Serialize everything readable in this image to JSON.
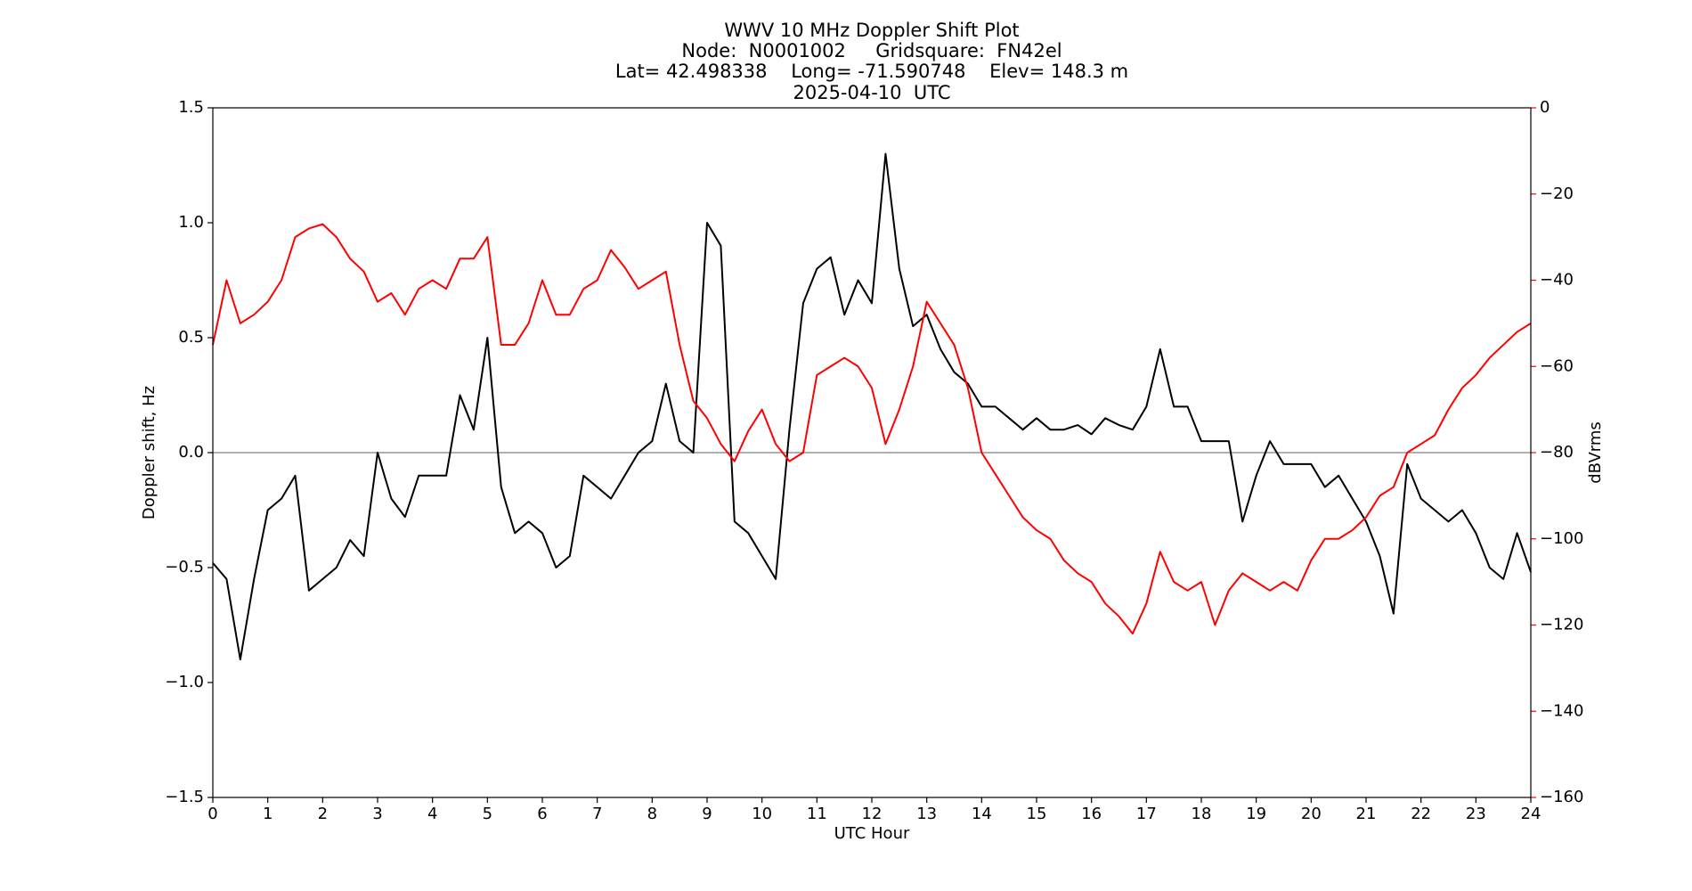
{
  "chart_data": {
    "type": "line",
    "title": "WWV 10 MHz Doppler Shift Plot",
    "subtitle": [
      "Node:  N0001002     Gridsquare:  FN42el",
      "Lat= 42.498338    Long= -71.590748    Elev= 148.3 m",
      "2025-04-10  UTC"
    ],
    "xlabel": "UTC Hour",
    "ylabel": "Doppler shift, Hz",
    "y2label": "dBVrms",
    "x": [
      0,
      0.25,
      0.5,
      0.75,
      1,
      1.25,
      1.5,
      1.75,
      2,
      2.25,
      2.5,
      2.75,
      3,
      3.25,
      3.5,
      3.75,
      4,
      4.25,
      4.5,
      4.75,
      5,
      5.25,
      5.5,
      5.75,
      6,
      6.25,
      6.5,
      6.75,
      7,
      7.25,
      7.5,
      7.75,
      8,
      8.25,
      8.5,
      8.75,
      9,
      9.25,
      9.5,
      9.75,
      10,
      10.25,
      10.5,
      10.75,
      11,
      11.25,
      11.5,
      11.75,
      12,
      12.25,
      12.5,
      12.75,
      13,
      13.25,
      13.5,
      13.75,
      14,
      14.25,
      14.5,
      14.75,
      15,
      15.25,
      15.5,
      15.75,
      16,
      16.25,
      16.5,
      16.75,
      17,
      17.25,
      17.5,
      17.75,
      18,
      18.25,
      18.5,
      18.75,
      19,
      19.25,
      19.5,
      19.75,
      20,
      20.25,
      20.5,
      20.75,
      21,
      21.25,
      21.5,
      21.75,
      22,
      22.25,
      22.5,
      22.75,
      23,
      23.25,
      23.5,
      23.75,
      24
    ],
    "series": [
      {
        "color": "#000000",
        "axis": "y",
        "values": [
          -0.48,
          -0.55,
          -0.9,
          -0.55,
          -0.25,
          -0.2,
          -0.1,
          -0.6,
          -0.55,
          -0.5,
          -0.38,
          -0.45,
          0.0,
          -0.2,
          -0.28,
          -0.1,
          -0.1,
          -0.1,
          0.25,
          0.1,
          0.5,
          -0.15,
          -0.35,
          -0.3,
          -0.35,
          -0.5,
          -0.45,
          -0.1,
          -0.15,
          -0.2,
          -0.1,
          0.0,
          0.05,
          0.3,
          0.05,
          0.0,
          1.0,
          0.9,
          -0.3,
          -0.35,
          -0.45,
          -0.55,
          0.1,
          0.65,
          0.8,
          0.85,
          0.6,
          0.75,
          0.65,
          1.3,
          0.8,
          0.55,
          0.6,
          0.45,
          0.35,
          0.3,
          0.2,
          0.2,
          0.15,
          0.1,
          0.15,
          0.1,
          0.1,
          0.12,
          0.08,
          0.15,
          0.12,
          0.1,
          0.2,
          0.45,
          0.2,
          0.2,
          0.05,
          0.05,
          0.05,
          -0.3,
          -0.1,
          0.05,
          -0.05,
          -0.05,
          -0.05,
          -0.15,
          -0.1,
          -0.2,
          -0.3,
          -0.45,
          -0.7,
          -0.05,
          -0.2,
          -0.25,
          -0.3,
          -0.25,
          -0.35,
          -0.5,
          -0.55,
          -0.35,
          -0.52
        ]
      },
      {
        "color": "#ff0000",
        "axis": "y2",
        "values": [
          -55,
          -40,
          -50,
          -48,
          -45,
          -40,
          -30,
          -28,
          -27,
          -30,
          -35,
          -38,
          -45,
          -43,
          -48,
          -42,
          -40,
          -42,
          -35,
          -35,
          -30,
          -55,
          -55,
          -50,
          -40,
          -48,
          -48,
          -42,
          -40,
          -33,
          -37,
          -42,
          -40,
          -38,
          -55,
          -68,
          -72,
          -78,
          -82,
          -75,
          -70,
          -78,
          -82,
          -80,
          -62,
          -60,
          -58,
          -60,
          -65,
          -78,
          -70,
          -60,
          -45,
          -50,
          -55,
          -65,
          -80,
          -85,
          -90,
          -95,
          -98,
          -100,
          -105,
          -108,
          -110,
          -115,
          -118,
          -122,
          -115,
          -103,
          -110,
          -112,
          -110,
          -120,
          -112,
          -108,
          -110,
          -112,
          -110,
          -112,
          -105,
          -100,
          -100,
          -98,
          -95,
          -90,
          -88,
          -80,
          -78,
          -76,
          -70,
          -65,
          -62,
          -58,
          -55,
          -52,
          -50
        ]
      }
    ],
    "hline": 0,
    "hline_color": "#808080",
    "xlim": [
      0,
      24
    ],
    "xticks": [
      0,
      1,
      2,
      3,
      4,
      5,
      6,
      7,
      8,
      9,
      10,
      11,
      12,
      13,
      14,
      15,
      16,
      17,
      18,
      19,
      20,
      21,
      22,
      23,
      24
    ],
    "ylim": [
      -1.5,
      1.5
    ],
    "yticks": [
      {
        "value": -1.5,
        "label": "−1.5"
      },
      {
        "value": -1.0,
        "label": "−1.0"
      },
      {
        "value": -0.5,
        "label": "−0.5"
      },
      {
        "value": 0,
        "label": "0.0"
      },
      0.5,
      {
        "value": 1.0,
        "label": "1.0"
      },
      1.5
    ],
    "y2lim": [
      -160,
      0
    ],
    "y2ticks": [
      {
        "value": -160,
        "label": "−160"
      },
      {
        "value": -140,
        "label": "−140"
      },
      {
        "value": -120,
        "label": "−120"
      },
      {
        "value": -100,
        "label": "−100"
      },
      {
        "value": -80,
        "label": "−80"
      },
      {
        "value": -60,
        "label": "−60"
      },
      {
        "value": -40,
        "label": "−40"
      },
      {
        "value": -20,
        "label": "−20"
      },
      0
    ],
    "y2color": "#ff0000"
  }
}
